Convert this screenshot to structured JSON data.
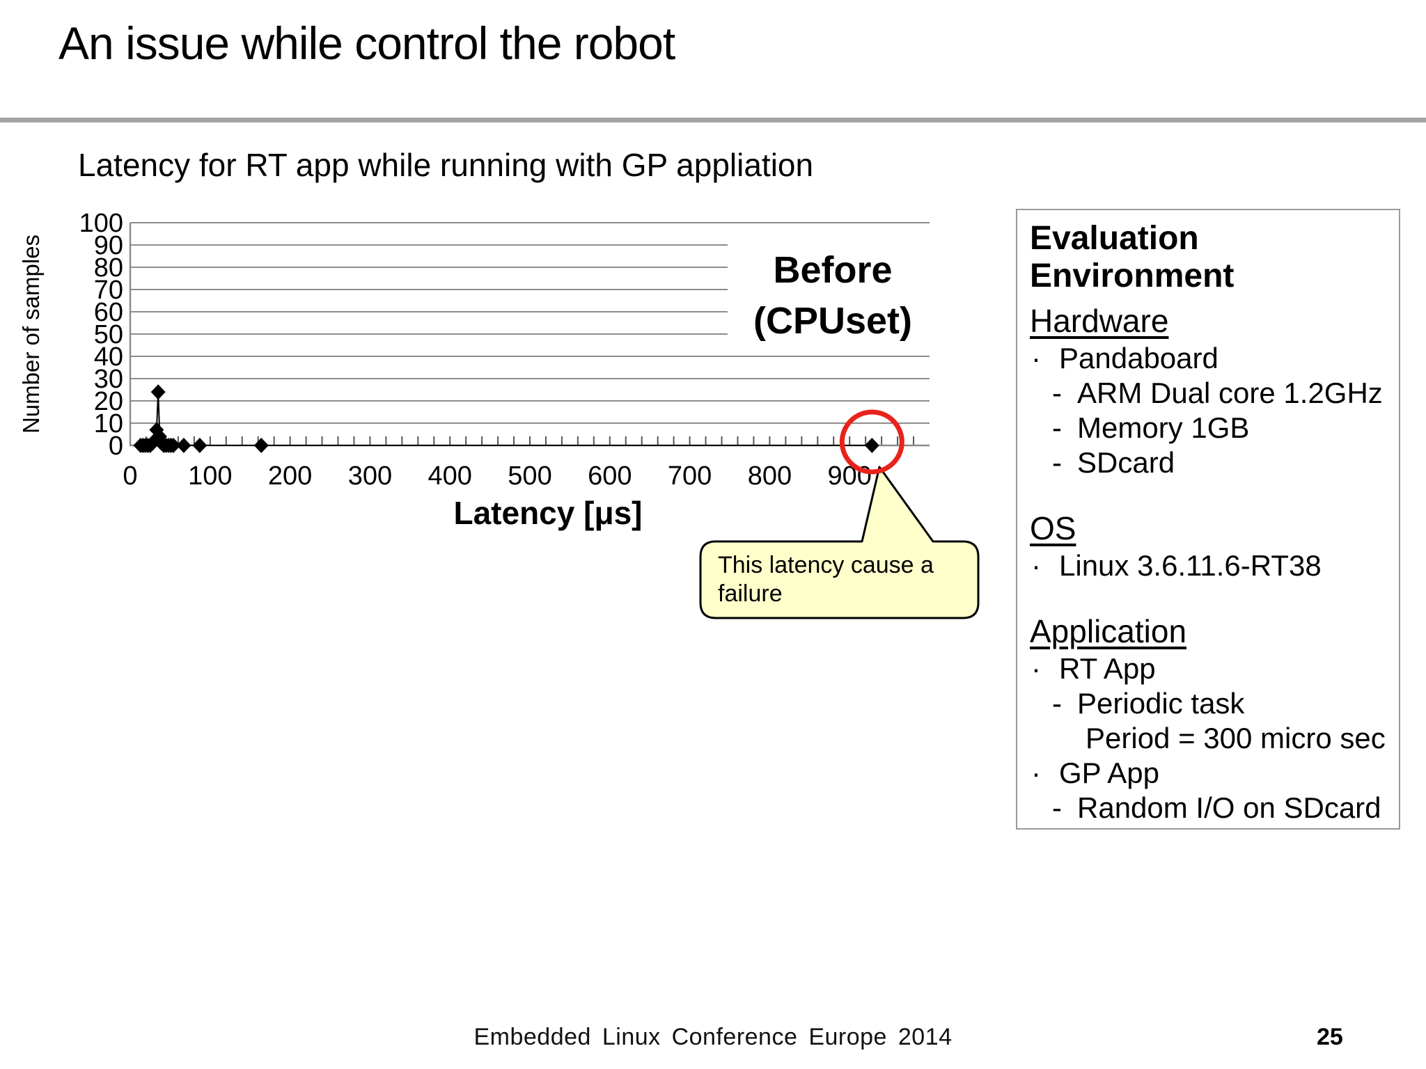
{
  "slide": {
    "title": "An issue while control the robot",
    "footer": "Embedded Linux Conference Europe 2014",
    "page_number": "25"
  },
  "chart": {
    "title": "Latency for RT app while running with GP appliation",
    "series_label": {
      "line1": "Before",
      "line2": "(CPUset)"
    },
    "callout": {
      "line1": "This latency cause a",
      "line2": "failure",
      "fill_color": "#FFFFCC"
    }
  },
  "chart_data": {
    "type": "line",
    "title": "Latency for RT app while running with GP appliation",
    "xlabel": "Latency [μs]",
    "ylabel": "Number of samples",
    "xlim": [
      0,
      1000
    ],
    "ylim": [
      0,
      100
    ],
    "x_major_tick_step": 100,
    "x_minor_tick_step": 20,
    "y_tick_step": 10,
    "grid": "horizontal-only",
    "legend": "none",
    "marker": "diamond",
    "series_color": "#000000",
    "gridline_color": "#8c8c8c",
    "axis_color": "#8c8c8c",
    "annotation": "Before (CPUset)",
    "callout_text": "This latency cause a failure",
    "points": [
      [
        13,
        0
      ],
      [
        16,
        0
      ],
      [
        19,
        0
      ],
      [
        22,
        0
      ],
      [
        25,
        0
      ],
      [
        28,
        1
      ],
      [
        30,
        2
      ],
      [
        33,
        7
      ],
      [
        35,
        24
      ],
      [
        37,
        4
      ],
      [
        39,
        1
      ],
      [
        42,
        0
      ],
      [
        45,
        0
      ],
      [
        48,
        0
      ],
      [
        51,
        0
      ],
      [
        54,
        0
      ],
      [
        67,
        0
      ],
      [
        87,
        0
      ],
      [
        164,
        0
      ],
      [
        928,
        0
      ]
    ],
    "highlight": {
      "x": 928,
      "y": 0,
      "shape": "circle",
      "color": "#e8231a"
    }
  },
  "panel": {
    "title": "Evaluation Environment",
    "sections": [
      {
        "heading": "Hardware",
        "items": [
          {
            "level": 1,
            "bullet": "·",
            "text": "Pandaboard"
          },
          {
            "level": 2,
            "bullet": "-",
            "text": "ARM Dual core 1.2GHz"
          },
          {
            "level": 2,
            "bullet": "-",
            "text": "Memory 1GB"
          },
          {
            "level": 2,
            "bullet": "-",
            "text": "SDcard"
          }
        ]
      },
      {
        "heading": "OS",
        "items": [
          {
            "level": 1,
            "bullet": "·",
            "text": "Linux 3.6.11.6-RT38"
          }
        ]
      },
      {
        "heading": "Application",
        "items": [
          {
            "level": 1,
            "bullet": "·",
            "text": "RT App"
          },
          {
            "level": 2,
            "bullet": "-",
            "text": "Periodic task"
          },
          {
            "level": 3,
            "bullet": "",
            "text": "Period = 300 micro sec"
          },
          {
            "level": 1,
            "bullet": "·",
            "text": "GP App"
          },
          {
            "level": 2,
            "bullet": "-",
            "text": "Random I/O on SDcard"
          }
        ]
      }
    ]
  }
}
